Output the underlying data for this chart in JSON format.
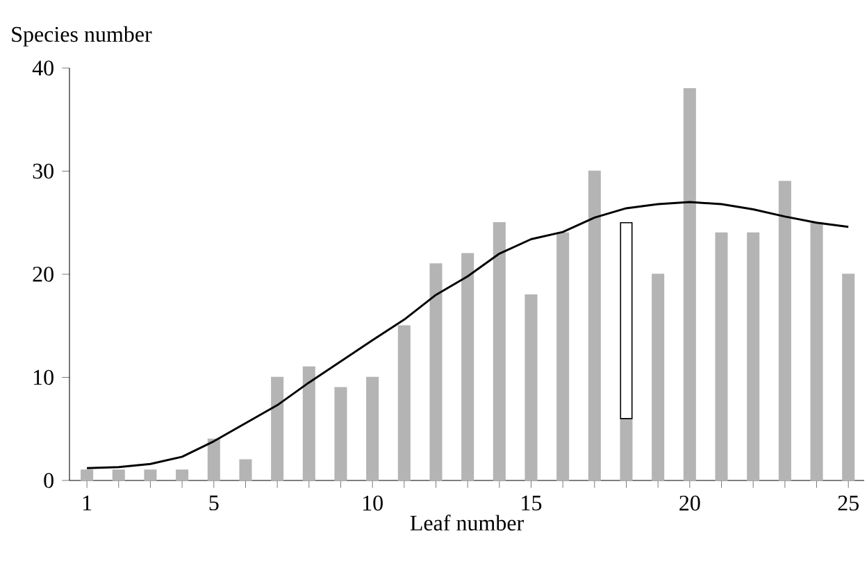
{
  "chart_data": {
    "type": "bar",
    "xlabel": "Leaf number",
    "ylabel": "Species number",
    "stacked": true,
    "x": [
      1,
      2,
      3,
      4,
      5,
      6,
      7,
      8,
      9,
      10,
      11,
      12,
      13,
      14,
      15,
      16,
      17,
      18,
      19,
      20,
      21,
      22,
      23,
      24,
      25
    ],
    "series": [
      {
        "color": "#b4b4b4",
        "values": [
          1,
          1,
          1,
          1,
          4,
          2,
          10,
          11,
          9,
          10,
          15,
          21,
          22,
          25,
          18,
          24,
          30,
          6,
          20,
          38,
          24,
          24,
          29,
          25,
          20
        ]
      },
      {
        "color": "#ffffff",
        "values": [
          null,
          null,
          null,
          null,
          null,
          null,
          null,
          null,
          null,
          null,
          null,
          null,
          null,
          null,
          null,
          null,
          null,
          19,
          null,
          null,
          null,
          null,
          null,
          null,
          null
        ]
      },
      {
        "type": "line",
        "color": "#000000",
        "x": [
          1,
          2,
          3,
          4,
          5,
          7,
          8,
          10,
          11,
          12,
          13,
          14,
          15,
          16,
          17,
          18,
          19,
          20,
          21,
          22,
          23,
          24,
          25
        ],
        "values": [
          1.2,
          1.3,
          1.6,
          2.3,
          3.8,
          7.3,
          9.5,
          13.6,
          15.6,
          18,
          19.8,
          22,
          23.4,
          24.1,
          25.5,
          26.4,
          26.8,
          27,
          26.8,
          26.3,
          25.6,
          25,
          24.6
        ]
      }
    ],
    "xlim": [
      0.45,
      25.5
    ],
    "xticks": [
      1,
      {
        "value": 2,
        "label": null
      },
      {
        "value": 3,
        "label": null
      },
      {
        "value": 4,
        "label": null
      },
      5,
      {
        "value": 6,
        "label": null
      },
      {
        "value": 7,
        "label": null
      },
      {
        "value": 8,
        "label": null
      },
      {
        "value": 9,
        "label": null
      },
      10,
      {
        "value": 11,
        "label": null
      },
      {
        "value": 12,
        "label": null
      },
      {
        "value": 13,
        "label": null
      },
      {
        "value": 14,
        "label": null
      },
      15,
      {
        "value": 16,
        "label": null
      },
      {
        "value": 17,
        "label": null
      },
      {
        "value": 18,
        "label": null
      },
      {
        "value": 19,
        "label": null
      },
      20,
      {
        "value": 21,
        "label": null
      },
      {
        "value": 22,
        "label": null
      },
      {
        "value": 23,
        "label": null
      },
      {
        "value": 24,
        "label": null
      },
      25
    ],
    "ylim": [
      0,
      40
    ],
    "yticks": [
      0,
      10,
      20,
      30,
      40
    ]
  }
}
